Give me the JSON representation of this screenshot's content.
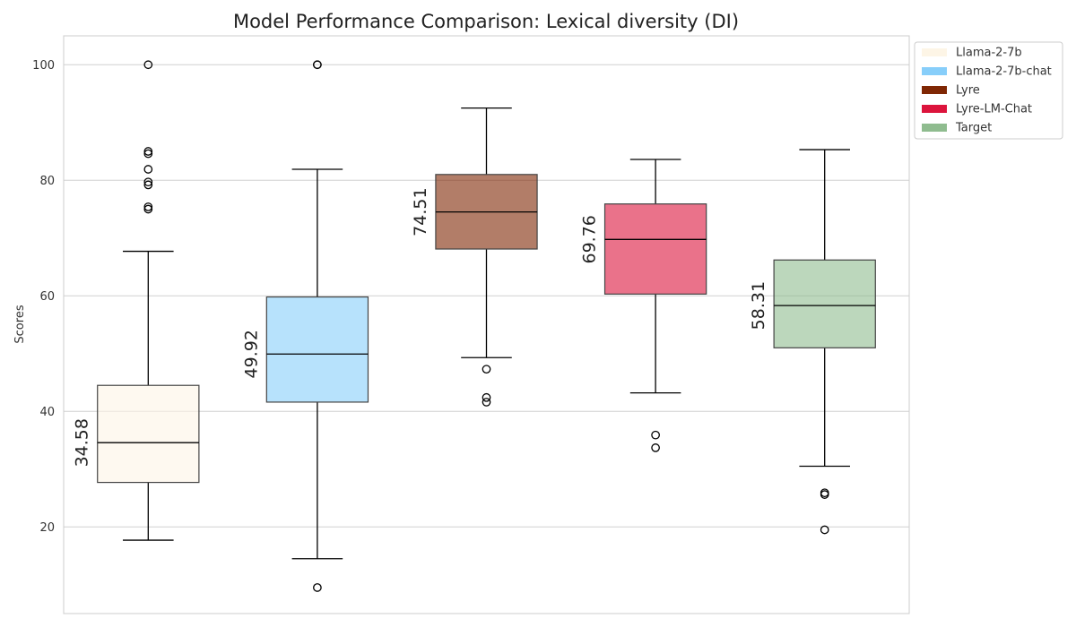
{
  "chart_data": {
    "type": "box",
    "title": "Model Performance Comparison: Lexical diversity (DI)",
    "ylabel": "Scores",
    "xlabel": "",
    "ylim": [
      5,
      105
    ],
    "yticks": [
      20,
      40,
      60,
      80,
      100
    ],
    "grid": true,
    "legend_position": "top-right",
    "series": [
      {
        "name": "Llama-2-7b",
        "color": "#fdf5e6",
        "min": 17.7,
        "q1": 27.7,
        "median": 34.58,
        "q3": 44.5,
        "max": 67.7,
        "median_label": "34.58",
        "outliers": [
          75.0,
          75.4,
          79.2,
          79.7,
          81.9,
          84.6,
          85.0,
          100.0
        ]
      },
      {
        "name": "Llama-2-7b-chat",
        "color": "#87cefa",
        "min": 14.5,
        "q1": 41.6,
        "median": 49.92,
        "q3": 59.8,
        "max": 81.9,
        "median_label": "49.92",
        "outliers": [
          9.5,
          100.0,
          100.0
        ]
      },
      {
        "name": "Lyre",
        "color": "#7f2704",
        "min": 49.3,
        "q1": 68.1,
        "median": 74.51,
        "q3": 81.0,
        "max": 92.5,
        "median_label": "74.51",
        "outliers": [
          41.6,
          42.4,
          47.3
        ]
      },
      {
        "name": "Lyre-LM-Chat",
        "color": "#dc143c",
        "min": 43.2,
        "q1": 60.3,
        "median": 69.76,
        "q3": 75.9,
        "max": 83.6,
        "median_label": "69.76",
        "outliers": [
          33.7,
          35.9
        ]
      },
      {
        "name": "Target",
        "color": "#8fbc8f",
        "min": 30.5,
        "q1": 51.0,
        "median": 58.31,
        "q3": 66.2,
        "max": 85.3,
        "median_label": "58.31",
        "outliers": [
          19.5,
          25.6,
          25.9
        ]
      }
    ]
  }
}
